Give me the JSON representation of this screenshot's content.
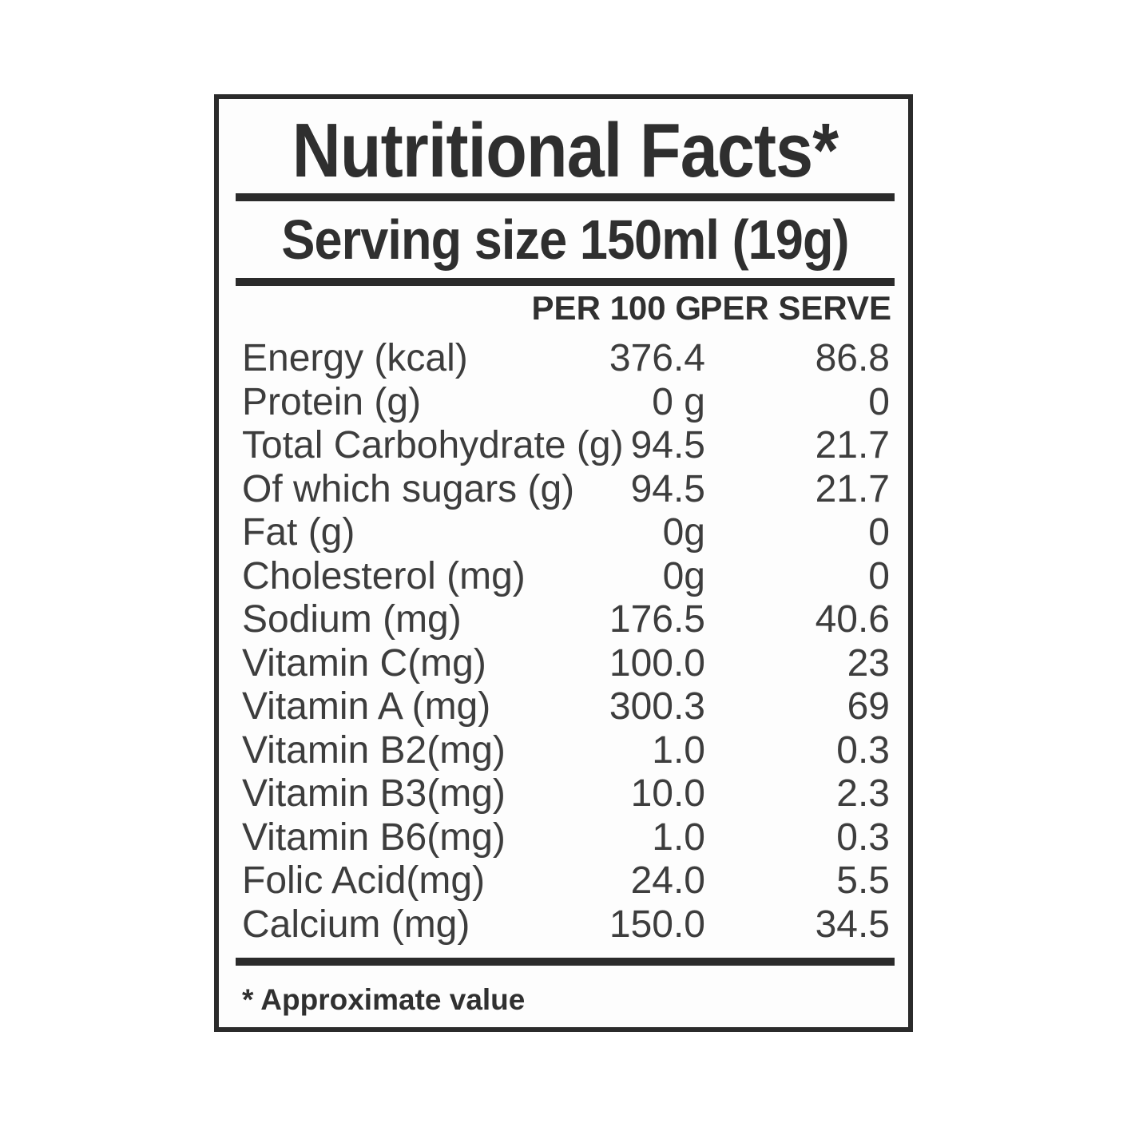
{
  "label": {
    "title": "Nutritional Facts*",
    "serving_line": "Serving size 150ml (19g)",
    "columns": {
      "per_100g": "PER 100 G",
      "per_serve": "PER SERVE"
    },
    "rows": [
      {
        "name": "Energy (kcal)",
        "per_100g": "376.4",
        "per_serve": "86.8"
      },
      {
        "name": "Protein (g)",
        "per_100g": "0 g",
        "per_serve": "0"
      },
      {
        "name": "Total Carbohydrate (g)",
        "per_100g": "94.5",
        "per_serve": "21.7"
      },
      {
        "name": "Of which sugars (g)",
        "per_100g": "94.5",
        "per_serve": "21.7"
      },
      {
        "name": "Fat (g)",
        "per_100g": "0g",
        "per_serve": "0"
      },
      {
        "name": "Cholesterol (mg)",
        "per_100g": "0g",
        "per_serve": "0"
      },
      {
        "name": "Sodium (mg)",
        "per_100g": "176.5",
        "per_serve": "40.6"
      },
      {
        "name": "Vitamin C(mg)",
        "per_100g": "100.0",
        "per_serve": "23"
      },
      {
        "name": "Vitamin A (mg)",
        "per_100g": "300.3",
        "per_serve": "69"
      },
      {
        "name": "Vitamin B2(mg)",
        "per_100g": "1.0",
        "per_serve": "0.3"
      },
      {
        "name": "Vitamin B3(mg)",
        "per_100g": "10.0",
        "per_serve": "2.3"
      },
      {
        "name": "Vitamin B6(mg)",
        "per_100g": "1.0",
        "per_serve": "0.3"
      },
      {
        "name": "Folic Acid(mg)",
        "per_100g": "24.0",
        "per_serve": "5.5"
      },
      {
        "name": "Calcium (mg)",
        "per_100g": "150.0",
        "per_serve": "34.5"
      }
    ],
    "footnote": "* Approximate value",
    "colors": {
      "border": "#2b2b2b",
      "text": "#3d3d3d",
      "heading_text": "#2f2f2f"
    }
  }
}
